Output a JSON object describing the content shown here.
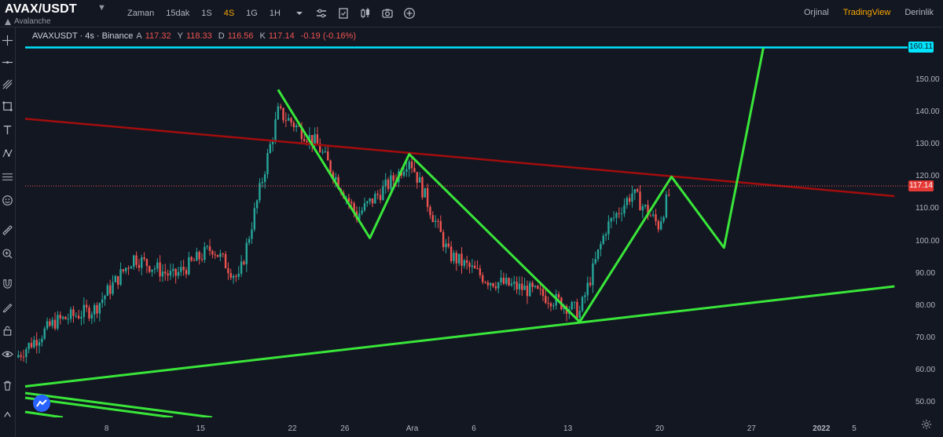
{
  "header": {
    "symbol": "AVAX/USDT",
    "subtitle": "Avalanche",
    "toolbar": {
      "items": [
        "Zaman",
        "15dak",
        "1S",
        "4S",
        "1G",
        "1H"
      ],
      "active_index": 3
    },
    "right_tabs": [
      "Orjinal",
      "TradingView",
      "Derinlik"
    ],
    "right_active_index": 1
  },
  "legend": {
    "name": "AVAXUSDT · 4s · Binance",
    "open_label": "A",
    "open": "117.32",
    "high_label": "Y",
    "high": "118.33",
    "low_label": "D",
    "low": "116.56",
    "close_label": "K",
    "close": "117.14",
    "change": "-0.19 (-0.16%)"
  },
  "price_axis": {
    "ticks": [
      "150.00",
      "140.00",
      "130.00",
      "120.00",
      "110.00",
      "100.00",
      "90.00",
      "80.00",
      "70.00",
      "60.00",
      "50.00"
    ],
    "cyan_label": "160.11",
    "current_label": "117.14"
  },
  "time_axis": {
    "ticks": [
      "8",
      "15",
      "22",
      "26",
      "Ara",
      "6",
      "13",
      "20",
      "27",
      "2022",
      "5"
    ]
  },
  "colors": {
    "background": "#131722",
    "up": "#26a69a",
    "down": "#ef5350",
    "trend_green": "#39e639",
    "resistance_red": "#a30d0d",
    "horizontal_cyan": "#00e5ff",
    "accent": "#f7a600"
  },
  "chart_data": {
    "type": "line",
    "symbol": "AVAXUSDT",
    "interval": "4s",
    "exchange": "Binance",
    "ylim": [
      47,
      163
    ],
    "ohlc_last": {
      "open": 117.32,
      "high": 118.33,
      "low": 116.56,
      "close": 117.14
    },
    "horizontal_line": 160.11,
    "annotations": {
      "zigzag_path": [
        {
          "x": "Nov 21",
          "y": 147
        },
        {
          "x": "Nov 28",
          "y": 101
        },
        {
          "x": "Dec 1",
          "y": 127
        },
        {
          "x": "Dec 14",
          "y": 75
        },
        {
          "x": "Dec 21",
          "y": 120
        },
        {
          "x": "Dec 25",
          "y": 98
        },
        {
          "x": "Dec 28",
          "y": 160
        }
      ],
      "resistance_line": [
        {
          "x": "Nov 1",
          "y": 138
        },
        {
          "x": "Jan 7",
          "y": 114
        }
      ],
      "support_line": [
        {
          "x": "Nov 1",
          "y": 55
        },
        {
          "x": "Jan 7",
          "y": 86
        }
      ]
    },
    "price_path": [
      {
        "x": "Nov 1",
        "y": 64
      },
      {
        "x": "Nov 4",
        "y": 75
      },
      {
        "x": "Nov 7",
        "y": 79
      },
      {
        "x": "Nov 10",
        "y": 95
      },
      {
        "x": "Nov 13",
        "y": 89
      },
      {
        "x": "Nov 16",
        "y": 98
      },
      {
        "x": "Nov 18",
        "y": 88
      },
      {
        "x": "Nov 21",
        "y": 140
      },
      {
        "x": "Nov 22",
        "y": 137
      },
      {
        "x": "Nov 24",
        "y": 130
      },
      {
        "x": "Nov 27",
        "y": 108
      },
      {
        "x": "Nov 30",
        "y": 120
      },
      {
        "x": "Dec 1",
        "y": 126
      },
      {
        "x": "Dec 4",
        "y": 96
      },
      {
        "x": "Dec 7",
        "y": 88
      },
      {
        "x": "Dec 10",
        "y": 85
      },
      {
        "x": "Dec 12",
        "y": 82
      },
      {
        "x": "Dec 14",
        "y": 78
      },
      {
        "x": "Dec 16",
        "y": 104
      },
      {
        "x": "Dec 18",
        "y": 115
      },
      {
        "x": "Dec 20",
        "y": 105
      },
      {
        "x": "Dec 21",
        "y": 117
      }
    ]
  }
}
